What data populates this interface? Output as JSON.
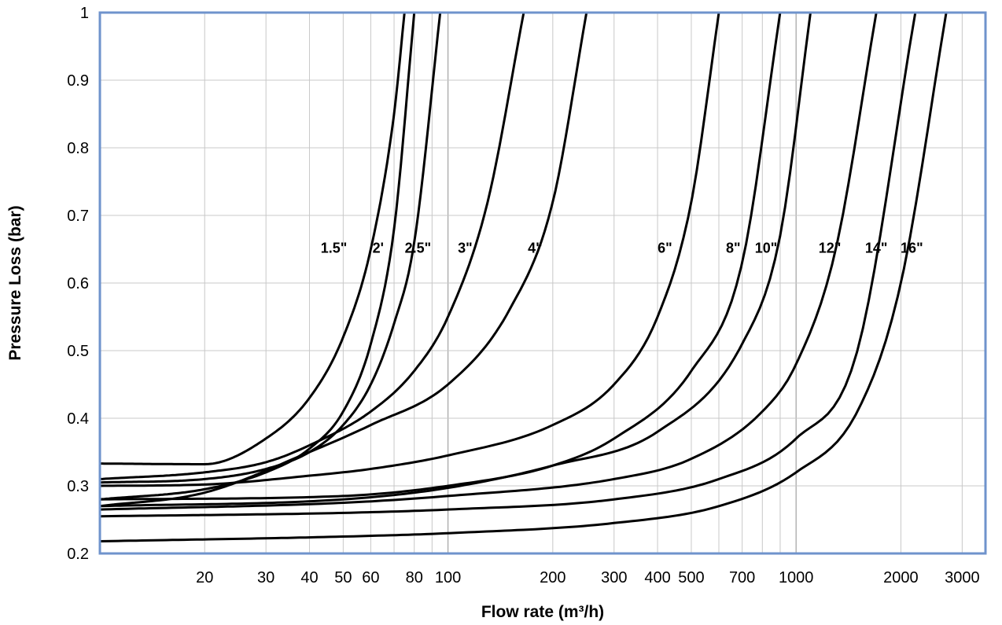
{
  "chart_data": {
    "type": "line",
    "title": "",
    "xlabel": "Flow rate (m³/h)",
    "ylabel": "Pressure Loss (bar)",
    "x_scale": "log",
    "xlim": [
      10,
      3500
    ],
    "ylim": [
      0.2,
      1
    ],
    "grid": true,
    "x_ticks": [
      20,
      30,
      40,
      50,
      60,
      80,
      100,
      200,
      300,
      400,
      500,
      700,
      1000,
      2000,
      3000
    ],
    "y_ticks": [
      0.2,
      0.3,
      0.4,
      0.5,
      0.6,
      0.7,
      0.8,
      0.9,
      1
    ],
    "series": [
      {
        "name": "1.5\"",
        "label_at": [
          47,
          0.645
        ],
        "x": [
          10,
          20,
          30,
          40,
          50,
          60,
          70,
          75
        ],
        "y": [
          0.333,
          0.332,
          0.37,
          0.43,
          0.52,
          0.65,
          0.85,
          1.0
        ]
      },
      {
        "name": "2'",
        "label_at": [
          63,
          0.645
        ],
        "x": [
          10,
          20,
          30,
          40,
          50,
          60,
          70,
          80
        ],
        "y": [
          0.28,
          0.295,
          0.32,
          0.355,
          0.41,
          0.51,
          0.68,
          1.0
        ]
      },
      {
        "name": "2.5\"",
        "label_at": [
          82,
          0.645
        ],
        "x": [
          10,
          20,
          30,
          40,
          50,
          60,
          70,
          80,
          95
        ],
        "y": [
          0.305,
          0.31,
          0.325,
          0.35,
          0.39,
          0.45,
          0.54,
          0.66,
          1.0
        ]
      },
      {
        "name": "3\"",
        "label_at": [
          112,
          0.645
        ],
        "x": [
          10,
          20,
          30,
          40,
          60,
          80,
          100,
          130,
          165
        ],
        "y": [
          0.31,
          0.32,
          0.335,
          0.36,
          0.41,
          0.47,
          0.55,
          0.72,
          1.0
        ]
      },
      {
        "name": "4\"",
        "label_at": [
          178,
          0.645
        ],
        "x": [
          10,
          20,
          40,
          60,
          100,
          150,
          200,
          250
        ],
        "y": [
          0.27,
          0.29,
          0.35,
          0.39,
          0.45,
          0.56,
          0.72,
          1.0
        ]
      },
      {
        "name": "6\"",
        "label_at": [
          420,
          0.645
        ],
        "x": [
          10,
          20,
          40,
          60,
          100,
          200,
          300,
          400,
          500,
          600
        ],
        "y": [
          0.3,
          0.302,
          0.315,
          0.325,
          0.345,
          0.39,
          0.45,
          0.55,
          0.72,
          1.0
        ]
      },
      {
        "name": "8\"",
        "label_at": [
          660,
          0.645
        ],
        "x": [
          10,
          50,
          100,
          200,
          300,
          500,
          700,
          900
        ],
        "y": [
          0.28,
          0.285,
          0.3,
          0.33,
          0.37,
          0.47,
          0.63,
          1.0
        ]
      },
      {
        "name": "10\"",
        "label_at": [
          820,
          0.645
        ],
        "x": [
          10,
          50,
          100,
          200,
          400,
          700,
          900,
          1100
        ],
        "y": [
          0.27,
          0.28,
          0.297,
          0.33,
          0.38,
          0.51,
          0.67,
          1.0
        ]
      },
      {
        "name": "12\"",
        "label_at": [
          1250,
          0.645
        ],
        "x": [
          10,
          50,
          100,
          300,
          500,
          800,
          1000,
          1300,
          1700
        ],
        "y": [
          0.265,
          0.275,
          0.285,
          0.31,
          0.34,
          0.41,
          0.48,
          0.65,
          1.0
        ]
      },
      {
        "name": "14\"",
        "label_at": [
          1700,
          0.645
        ],
        "x": [
          10,
          50,
          100,
          300,
          600,
          1000,
          1500,
          2200
        ],
        "y": [
          0.255,
          0.26,
          0.265,
          0.28,
          0.31,
          0.37,
          0.5,
          1.0
        ]
      },
      {
        "name": "16\"",
        "label_at": [
          2150,
          0.645
        ],
        "x": [
          10,
          50,
          100,
          300,
          600,
          1000,
          1500,
          2000,
          2700
        ],
        "y": [
          0.218,
          0.225,
          0.23,
          0.245,
          0.27,
          0.32,
          0.41,
          0.6,
          1.0
        ]
      }
    ]
  }
}
